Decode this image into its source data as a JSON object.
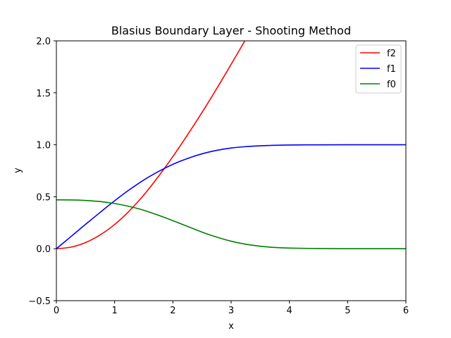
{
  "chart_data": {
    "type": "line",
    "title": "Blasius Boundary Layer - Shooting Method",
    "xlabel": "x",
    "ylabel": "y",
    "xlim": [
      0,
      6
    ],
    "ylim": [
      -0.5,
      2.0
    ],
    "xticks": [
      "0",
      "1",
      "2",
      "3",
      "4",
      "5",
      "6"
    ],
    "yticks": [
      "−0.5",
      "0.0",
      "0.5",
      "1.0",
      "1.5",
      "2.0"
    ],
    "grid": false,
    "legend_position": "top-right",
    "series": [
      {
        "name": "f2",
        "color": "#ff0000",
        "x": [
          0,
          0.25,
          0.5,
          0.75,
          1.0,
          1.25,
          1.5,
          1.75,
          2.0,
          2.25,
          2.5,
          2.75,
          3.0,
          3.25
        ],
        "y": [
          0.0,
          0.015,
          0.059,
          0.132,
          0.233,
          0.362,
          0.516,
          0.694,
          0.887,
          1.094,
          1.311,
          1.538,
          1.774,
          2.014
        ]
      },
      {
        "name": "f1",
        "color": "#0000ff",
        "x": [
          0,
          0.25,
          0.5,
          0.75,
          1.0,
          1.25,
          1.5,
          1.75,
          2.0,
          2.25,
          2.5,
          2.75,
          3.0,
          3.25,
          3.5,
          3.75,
          4.0,
          4.5,
          5.0,
          5.5,
          6.0
        ],
        "y": [
          0.0,
          0.117,
          0.234,
          0.349,
          0.461,
          0.566,
          0.661,
          0.742,
          0.812,
          0.868,
          0.913,
          0.946,
          0.969,
          0.982,
          0.99,
          0.995,
          0.998,
          0.9995,
          1.0,
          1.0,
          1.0
        ]
      },
      {
        "name": "f0",
        "color": "#008000",
        "x": [
          0,
          0.25,
          0.5,
          0.75,
          1.0,
          1.25,
          1.5,
          1.75,
          2.0,
          2.25,
          2.5,
          2.75,
          3.0,
          3.25,
          3.5,
          3.75,
          4.0,
          4.5,
          5.0,
          5.5,
          6.0
        ],
        "y": [
          0.47,
          0.469,
          0.464,
          0.454,
          0.435,
          0.407,
          0.37,
          0.322,
          0.27,
          0.215,
          0.16,
          0.112,
          0.072,
          0.043,
          0.024,
          0.012,
          0.006,
          0.002,
          0.0,
          0.0,
          0.0
        ]
      }
    ]
  }
}
